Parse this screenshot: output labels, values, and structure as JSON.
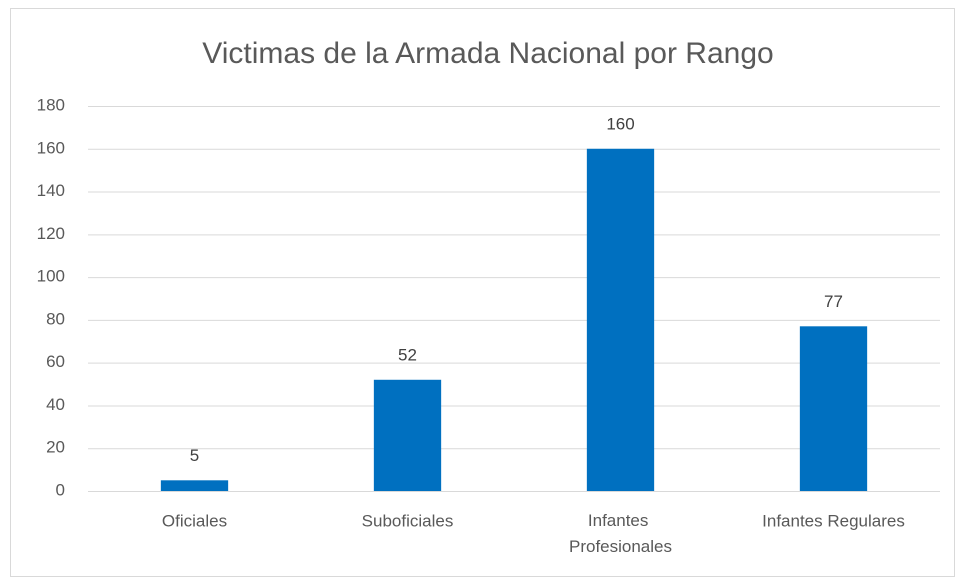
{
  "chart_data": {
    "type": "bar",
    "title": "Victimas de la Armada Nacional por Rango",
    "categories": [
      "Oficiales",
      "Suboficiales",
      "Infantes Profesionales",
      "Infantes Regulares"
    ],
    "values": [
      5,
      52,
      160,
      77
    ],
    "color": "#0070c0",
    "ylim": [
      0,
      180
    ],
    "yticks": [
      0,
      20,
      40,
      60,
      80,
      100,
      120,
      140,
      160,
      180
    ],
    "grid": true
  }
}
